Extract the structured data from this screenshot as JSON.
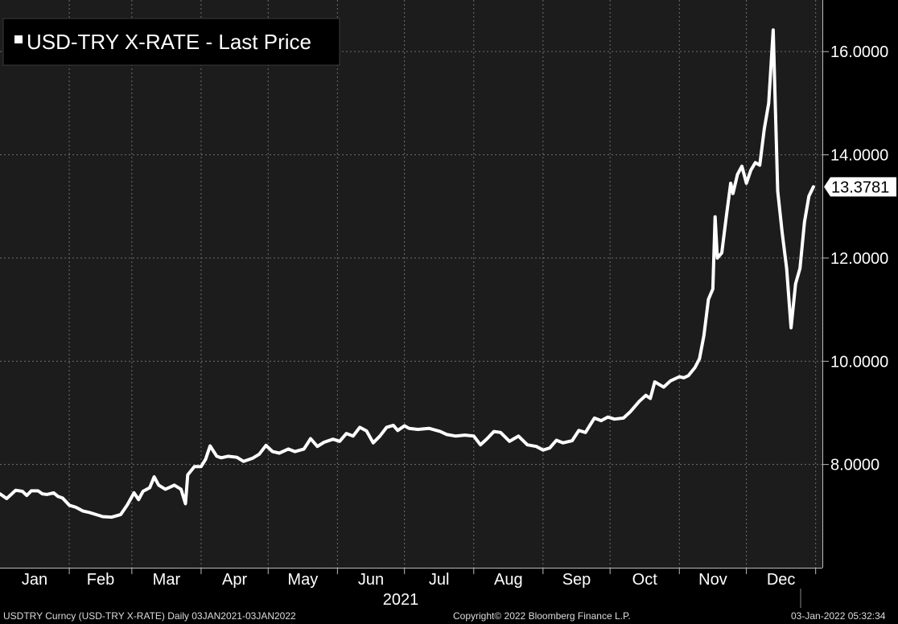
{
  "chart_data": {
    "type": "line",
    "legend": "USD-TRY X-RATE - Last Price",
    "year_label": "2021",
    "last_value_label": "13.3781",
    "y_ticks": [
      "8.0000",
      "10.0000",
      "12.0000",
      "14.0000",
      "16.0000"
    ],
    "y_tick_values": [
      8,
      10,
      12,
      14,
      16
    ],
    "ylim": [
      6.0,
      17.0
    ],
    "x_ticks": [
      "Jan",
      "Feb",
      "Mar",
      "Apr",
      "May",
      "Jun",
      "Jul",
      "Aug",
      "Sep",
      "Oct",
      "Nov",
      "Dec"
    ],
    "x_range": [
      "2021-01-01",
      "2022-01-04"
    ],
    "grid": true,
    "series": [
      {
        "name": "USD-TRY X-RATE - Last Price",
        "color": "#ffffff",
        "points": [
          [
            "2021-01-01",
            7.43
          ],
          [
            "2021-01-04",
            7.34
          ],
          [
            "2021-01-06",
            7.42
          ],
          [
            "2021-01-08",
            7.5
          ],
          [
            "2021-01-11",
            7.48
          ],
          [
            "2021-01-13",
            7.4
          ],
          [
            "2021-01-15",
            7.49
          ],
          [
            "2021-01-18",
            7.49
          ],
          [
            "2021-01-20",
            7.43
          ],
          [
            "2021-01-22",
            7.42
          ],
          [
            "2021-01-25",
            7.45
          ],
          [
            "2021-01-27",
            7.38
          ],
          [
            "2021-01-29",
            7.35
          ],
          [
            "2021-02-01",
            7.21
          ],
          [
            "2021-02-04",
            7.17
          ],
          [
            "2021-02-07",
            7.1
          ],
          [
            "2021-02-10",
            7.07
          ],
          [
            "2021-02-13",
            7.03
          ],
          [
            "2021-02-16",
            6.99
          ],
          [
            "2021-02-20",
            6.98
          ],
          [
            "2021-02-24",
            7.03
          ],
          [
            "2021-02-27",
            7.22
          ],
          [
            "2021-03-02",
            7.45
          ],
          [
            "2021-03-04",
            7.32
          ],
          [
            "2021-03-06",
            7.48
          ],
          [
            "2021-03-09",
            7.55
          ],
          [
            "2021-03-11",
            7.76
          ],
          [
            "2021-03-13",
            7.6
          ],
          [
            "2021-03-16",
            7.52
          ],
          [
            "2021-03-18",
            7.56
          ],
          [
            "2021-03-20",
            7.6
          ],
          [
            "2021-03-23",
            7.52
          ],
          [
            "2021-03-25",
            7.24
          ],
          [
            "2021-03-26",
            7.8
          ],
          [
            "2021-03-29",
            7.96
          ],
          [
            "2021-04-01",
            7.96
          ],
          [
            "2021-04-03",
            8.1
          ],
          [
            "2021-04-05",
            8.36
          ],
          [
            "2021-04-08",
            8.16
          ],
          [
            "2021-04-10",
            8.13
          ],
          [
            "2021-04-13",
            8.16
          ],
          [
            "2021-04-17",
            8.14
          ],
          [
            "2021-04-20",
            8.06
          ],
          [
            "2021-04-24",
            8.12
          ],
          [
            "2021-04-27",
            8.2
          ],
          [
            "2021-04-30",
            8.37
          ],
          [
            "2021-05-03",
            8.25
          ],
          [
            "2021-05-06",
            8.22
          ],
          [
            "2021-05-10",
            8.3
          ],
          [
            "2021-05-13",
            8.25
          ],
          [
            "2021-05-17",
            8.3
          ],
          [
            "2021-05-20",
            8.5
          ],
          [
            "2021-05-23",
            8.35
          ],
          [
            "2021-05-26",
            8.43
          ],
          [
            "2021-05-30",
            8.49
          ],
          [
            "2021-06-02",
            8.45
          ],
          [
            "2021-06-05",
            8.6
          ],
          [
            "2021-06-08",
            8.55
          ],
          [
            "2021-06-11",
            8.72
          ],
          [
            "2021-06-14",
            8.65
          ],
          [
            "2021-06-17",
            8.42
          ],
          [
            "2021-06-20",
            8.55
          ],
          [
            "2021-06-23",
            8.72
          ],
          [
            "2021-06-26",
            8.76
          ],
          [
            "2021-06-28",
            8.66
          ],
          [
            "2021-07-01",
            8.75
          ],
          [
            "2021-07-03",
            8.7
          ],
          [
            "2021-07-07",
            8.68
          ],
          [
            "2021-07-12",
            8.7
          ],
          [
            "2021-07-17",
            8.64
          ],
          [
            "2021-07-20",
            8.58
          ],
          [
            "2021-07-24",
            8.55
          ],
          [
            "2021-07-28",
            8.57
          ],
          [
            "2021-08-01",
            8.55
          ],
          [
            "2021-08-04",
            8.38
          ],
          [
            "2021-08-07",
            8.5
          ],
          [
            "2021-08-10",
            8.64
          ],
          [
            "2021-08-13",
            8.62
          ],
          [
            "2021-08-17",
            8.45
          ],
          [
            "2021-08-21",
            8.55
          ],
          [
            "2021-08-25",
            8.38
          ],
          [
            "2021-08-29",
            8.35
          ],
          [
            "2021-09-01",
            8.28
          ],
          [
            "2021-09-04",
            8.32
          ],
          [
            "2021-09-07",
            8.47
          ],
          [
            "2021-09-10",
            8.42
          ],
          [
            "2021-09-14",
            8.46
          ],
          [
            "2021-09-17",
            8.66
          ],
          [
            "2021-09-20",
            8.62
          ],
          [
            "2021-09-24",
            8.9
          ],
          [
            "2021-09-27",
            8.85
          ],
          [
            "2021-09-30",
            8.92
          ],
          [
            "2021-10-03",
            8.88
          ],
          [
            "2021-10-07",
            8.9
          ],
          [
            "2021-10-10",
            9.02
          ],
          [
            "2021-10-14",
            9.22
          ],
          [
            "2021-10-17",
            9.34
          ],
          [
            "2021-10-19",
            9.28
          ],
          [
            "2021-10-21",
            9.6
          ],
          [
            "2021-10-23",
            9.55
          ],
          [
            "2021-10-25",
            9.5
          ],
          [
            "2021-10-28",
            9.62
          ],
          [
            "2021-11-01",
            9.7
          ],
          [
            "2021-11-03",
            9.68
          ],
          [
            "2021-11-05",
            9.72
          ],
          [
            "2021-11-08",
            9.88
          ],
          [
            "2021-11-10",
            10.05
          ],
          [
            "2021-11-12",
            10.5
          ],
          [
            "2021-11-14",
            11.2
          ],
          [
            "2021-11-16",
            11.4
          ],
          [
            "2021-11-17",
            12.8
          ],
          [
            "2021-11-18",
            12.0
          ],
          [
            "2021-11-20",
            12.1
          ],
          [
            "2021-11-22",
            12.8
          ],
          [
            "2021-11-24",
            13.45
          ],
          [
            "2021-11-25",
            13.25
          ],
          [
            "2021-11-27",
            13.62
          ],
          [
            "2021-11-29",
            13.78
          ],
          [
            "2021-12-01",
            13.45
          ],
          [
            "2021-12-03",
            13.7
          ],
          [
            "2021-12-05",
            13.85
          ],
          [
            "2021-12-07",
            13.8
          ],
          [
            "2021-12-09",
            14.5
          ],
          [
            "2021-12-11",
            15.0
          ],
          [
            "2021-12-13",
            16.42
          ],
          [
            "2021-12-15",
            13.3
          ],
          [
            "2021-12-17",
            12.5
          ],
          [
            "2021-12-19",
            11.8
          ],
          [
            "2021-12-21",
            10.65
          ],
          [
            "2021-12-23",
            11.5
          ],
          [
            "2021-12-25",
            11.8
          ],
          [
            "2021-12-27",
            12.7
          ],
          [
            "2021-12-29",
            13.2
          ],
          [
            "2021-12-31",
            13.38
          ]
        ]
      }
    ]
  },
  "footer": {
    "left": "USDTRY Curncy (USD-TRY X-RATE)  Daily 03JAN2021-03JAN2022",
    "center": "Copyright© 2022 Bloomberg Finance L.P.",
    "right": "03-Jan-2022 05:32:34"
  },
  "colors": {
    "background": "#1c1c1c",
    "frame": "#000000",
    "line": "#ffffff",
    "grid": "#6e6e6e",
    "text": "#ffffff"
  }
}
